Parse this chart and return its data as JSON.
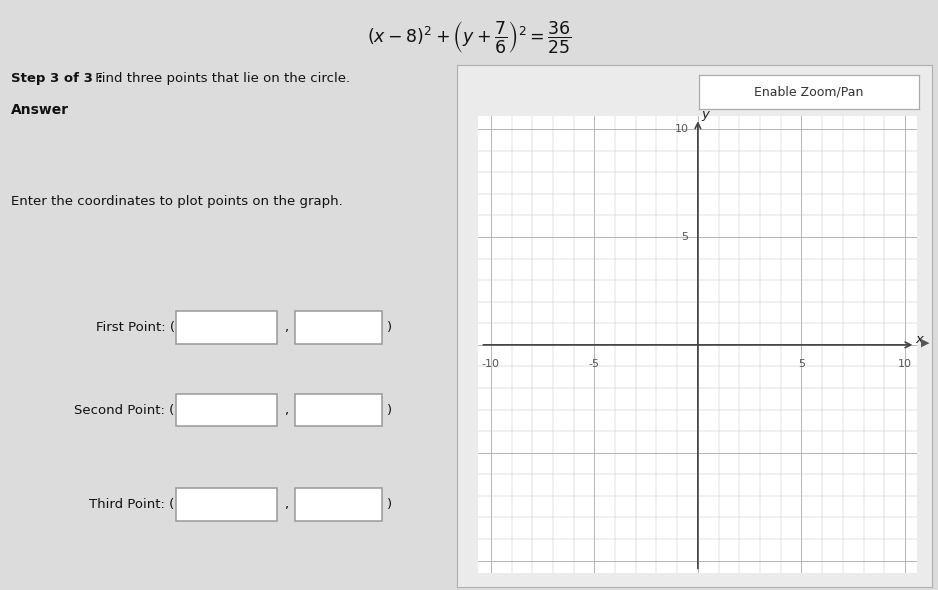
{
  "bg_color": "#dcdcdc",
  "graph_bg": "#ffffff",
  "title_eq": "(x-8)^2 + \\left(y+\\dfrac{7}{6}\\right)^2 = \\dfrac{36}{25}",
  "step_text_bold": "Step 3 of 3 :",
  "step_text_rest": "  Find three points that lie on the circle.",
  "answer_text": "Answer",
  "instruction_text": "Enter the coordinates to plot points on the graph.",
  "enable_zoom_text": "Enable Zoom/Pan",
  "point_labels": [
    "First Point: (",
    "Second Point: (",
    "Third Point: ("
  ],
  "xmin": -10,
  "xmax": 10,
  "ymin": -10,
  "ymax": 10,
  "grid_color": "#b0b0b0",
  "axis_color": "#444444",
  "tick_label_color": "#555555",
  "axis_label_x": "x",
  "axis_label_y": "y"
}
